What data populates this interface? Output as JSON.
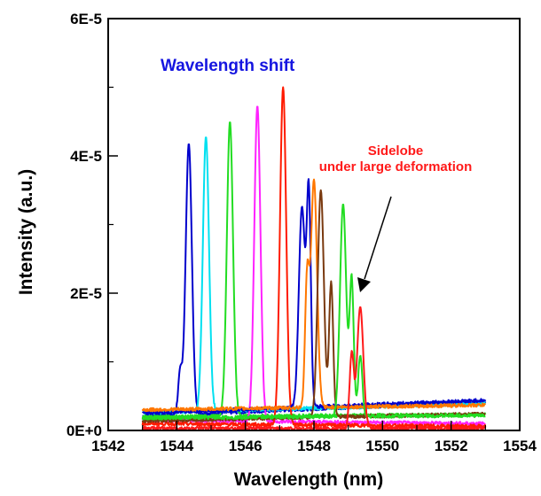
{
  "chart_data": {
    "type": "line",
    "title": "",
    "xlabel": "Wavelength (nm)",
    "ylabel": "Intensity (a.u.)",
    "xlim": [
      1542,
      1554
    ],
    "ylim": [
      0,
      6e-05
    ],
    "x_ticks": [
      1542,
      1544,
      1546,
      1548,
      1550,
      1552,
      1554
    ],
    "x_tick_labels": [
      "1542",
      "1544",
      "1546",
      "1548",
      "1550",
      "1552",
      "1554"
    ],
    "y_ticks": [
      0,
      2e-05,
      4e-05,
      6e-05
    ],
    "y_tick_labels": [
      "0E+0",
      "2E-5",
      "4E-5",
      "6E-5"
    ],
    "grid": false,
    "legend": "none",
    "annotations": [
      {
        "text": "Wavelength shift",
        "color": "#1515e0"
      },
      {
        "text": "Sidelobe",
        "color": "#ff1a1a"
      },
      {
        "text": "under large deformation",
        "color": "#ff1a1a"
      }
    ],
    "series": [
      {
        "color": "#0000cc",
        "peak_x": 1544.35,
        "peak_y": 4.18e-05,
        "baseline_left": 2.1e-06,
        "baseline_right": 4.2e-06,
        "side_peaks": [
          {
            "x": 1544.1,
            "y": 6e-06
          }
        ]
      },
      {
        "color": "#00e0f0",
        "peak_x": 1544.85,
        "peak_y": 4.28e-05,
        "baseline_left": 2.6e-06,
        "baseline_right": 3.9e-06,
        "side_peaks": []
      },
      {
        "color": "#22dd22",
        "peak_x": 1545.55,
        "peak_y": 4.5e-05,
        "baseline_left": 2e-06,
        "baseline_right": 2.3e-06,
        "side_peaks": []
      },
      {
        "color": "#ff22ff",
        "peak_x": 1546.35,
        "peak_y": 4.73e-05,
        "baseline_left": 1.5e-06,
        "baseline_right": 1e-06,
        "side_peaks": []
      },
      {
        "color": "#ff1a00",
        "peak_x": 1547.1,
        "peak_y": 5e-05,
        "baseline_left": 1e-06,
        "baseline_right": 6e-07,
        "side_peaks": []
      },
      {
        "color": "#0000cc",
        "peak_x": 1547.65,
        "peak_y": 3.25e-05,
        "baseline_left": 2.5e-06,
        "baseline_right": 4.4e-06,
        "side_peaks": [
          {
            "x": 1547.85,
            "y": 3.05e-05
          }
        ]
      },
      {
        "color": "#ff7700",
        "peak_x": 1548.0,
        "peak_y": 3.65e-05,
        "baseline_left": 3e-06,
        "baseline_right": 3.7e-06,
        "side_peaks": [
          {
            "x": 1547.8,
            "y": 1.8e-05
          }
        ]
      },
      {
        "color": "#7a3a10",
        "peak_x": 1548.2,
        "peak_y": 3.5e-05,
        "baseline_left": 1.4e-06,
        "baseline_right": 2.4e-06,
        "side_peaks": [
          {
            "x": 1548.5,
            "y": 1.95e-05
          }
        ]
      },
      {
        "color": "#22dd22",
        "peak_x": 1548.85,
        "peak_y": 3.3e-05,
        "baseline_left": 1.8e-06,
        "baseline_right": 2.2e-06,
        "side_peaks": [
          {
            "x": 1549.1,
            "y": 2e-05
          },
          {
            "x": 1549.35,
            "y": 9e-06
          }
        ]
      },
      {
        "color": "#ff1a1a",
        "peak_x": 1549.35,
        "peak_y": 1.8e-05,
        "baseline_left": 3e-07,
        "baseline_right": 3e-07,
        "side_peaks": [
          {
            "x": 1549.1,
            "y": 1.1e-05
          }
        ]
      }
    ]
  }
}
